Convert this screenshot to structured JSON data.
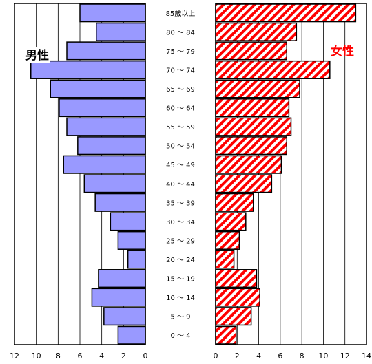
{
  "chart_data": {
    "type": "bar",
    "orientation": "horizontal",
    "categories": [
      "85歳以上",
      "80 ～ 84",
      "75 ～ 79",
      "70 ～ 74",
      "65 ～ 69",
      "60 ～ 64",
      "55 ～ 59",
      "50 ～ 54",
      "45 ～ 49",
      "40 ～ 44",
      "35 ～ 39",
      "30 ～ 34",
      "25 ～ 29",
      "20 ～ 24",
      "15 ～ 19",
      "10 ～ 14",
      "5 ～ 9",
      "0 ～ 4"
    ],
    "series": [
      {
        "name": "男性",
        "values": [
          6.0,
          4.5,
          7.2,
          10.5,
          8.7,
          7.9,
          7.2,
          6.2,
          7.5,
          5.6,
          4.6,
          3.2,
          2.5,
          1.6,
          4.3,
          4.9,
          3.8,
          2.5
        ],
        "color": "#9999ff",
        "xlim": [
          0,
          12
        ],
        "xticks": [
          "12",
          "10",
          "8",
          "6",
          "4",
          "2",
          "0"
        ]
      },
      {
        "name": "女性",
        "values": [
          13.0,
          7.5,
          6.6,
          10.6,
          7.8,
          6.8,
          7.0,
          6.6,
          6.1,
          5.2,
          3.5,
          2.8,
          2.2,
          1.7,
          3.8,
          4.1,
          3.3,
          1.9
        ],
        "color": "#ff0000",
        "pattern": "diagonal-stripes",
        "xlim": [
          0,
          14
        ],
        "xticks": [
          "0",
          "2",
          "4",
          "6",
          "8",
          "10",
          "12",
          "14"
        ]
      }
    ],
    "grid": true
  }
}
